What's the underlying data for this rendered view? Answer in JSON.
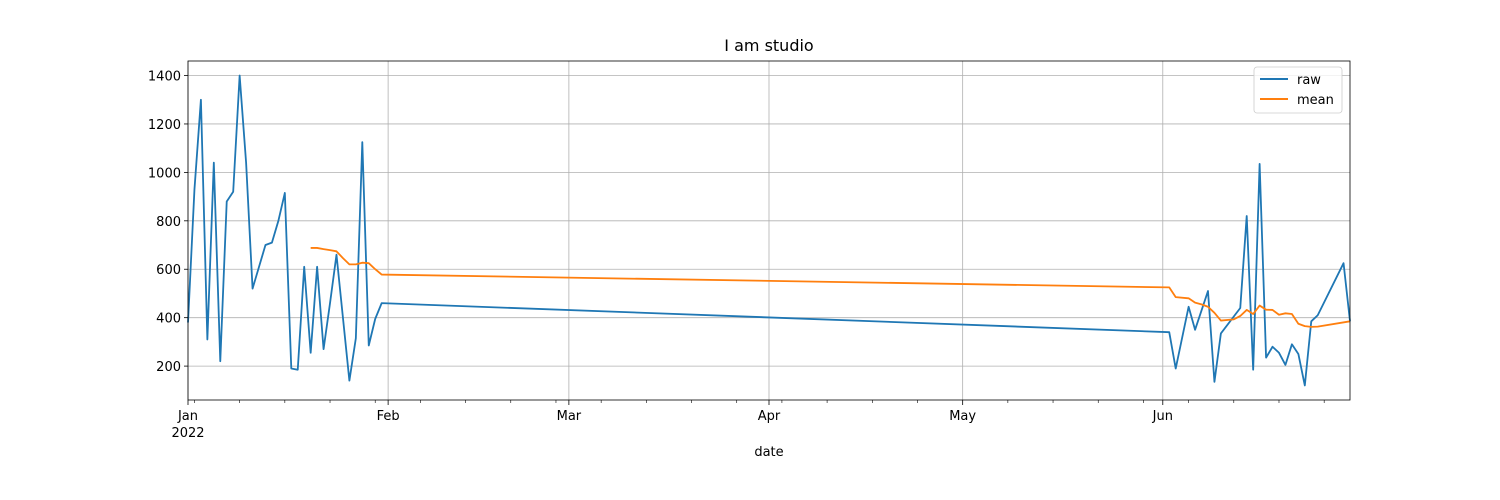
{
  "chart_data": {
    "type": "line",
    "title": "I am studio",
    "xlabel": "date",
    "ylabel": "",
    "x_axis_type": "date",
    "xlim": [
      "2022-01-01",
      "2022-06-30"
    ],
    "ylim": [
      60,
      1460
    ],
    "grid": true,
    "legend_position": "upper right",
    "x_major_ticks": [
      {
        "date": "2022-01-01",
        "label": "Jan",
        "sublabel": "2022"
      },
      {
        "date": "2022-02-01",
        "label": "Feb"
      },
      {
        "date": "2022-03-01",
        "label": "Mar"
      },
      {
        "date": "2022-04-01",
        "label": "Apr"
      },
      {
        "date": "2022-05-01",
        "label": "May"
      },
      {
        "date": "2022-06-01",
        "label": "Jun"
      }
    ],
    "y_ticks": [
      200,
      400,
      600,
      800,
      1000,
      1200,
      1400
    ],
    "series": [
      {
        "name": "raw",
        "color": "#1f77b4",
        "points": [
          [
            "2022-01-01",
            380
          ],
          [
            "2022-01-02",
            930
          ],
          [
            "2022-01-03",
            1300
          ],
          [
            "2022-01-04",
            310
          ],
          [
            "2022-01-05",
            1040
          ],
          [
            "2022-01-06",
            220
          ],
          [
            "2022-01-07",
            880
          ],
          [
            "2022-01-08",
            920
          ],
          [
            "2022-01-09",
            1400
          ],
          [
            "2022-01-10",
            1040
          ],
          [
            "2022-01-11",
            520
          ],
          [
            "2022-01-13",
            700
          ],
          [
            "2022-01-14",
            710
          ],
          [
            "2022-01-15",
            800
          ],
          [
            "2022-01-16",
            915
          ],
          [
            "2022-01-17",
            190
          ],
          [
            "2022-01-18",
            185
          ],
          [
            "2022-01-19",
            610
          ],
          [
            "2022-01-20",
            255
          ],
          [
            "2022-01-21",
            610
          ],
          [
            "2022-01-22",
            270
          ],
          [
            "2022-01-23",
            460
          ],
          [
            "2022-01-24",
            660
          ],
          [
            "2022-01-26",
            140
          ],
          [
            "2022-01-27",
            315
          ],
          [
            "2022-01-28",
            1125
          ],
          [
            "2022-01-29",
            285
          ],
          [
            "2022-01-30",
            395
          ],
          [
            "2022-01-31",
            460
          ],
          [
            "2022-06-02",
            340
          ],
          [
            "2022-06-03",
            190
          ],
          [
            "2022-06-05",
            445
          ],
          [
            "2022-06-06",
            350
          ],
          [
            "2022-06-08",
            510
          ],
          [
            "2022-06-09",
            135
          ],
          [
            "2022-06-10",
            335
          ],
          [
            "2022-06-13",
            440
          ],
          [
            "2022-06-14",
            820
          ],
          [
            "2022-06-15",
            185
          ],
          [
            "2022-06-16",
            1035
          ],
          [
            "2022-06-17",
            235
          ],
          [
            "2022-06-18",
            280
          ],
          [
            "2022-06-19",
            255
          ],
          [
            "2022-06-20",
            205
          ],
          [
            "2022-06-21",
            290
          ],
          [
            "2022-06-22",
            250
          ],
          [
            "2022-06-23",
            120
          ],
          [
            "2022-06-24",
            385
          ],
          [
            "2022-06-25",
            410
          ],
          [
            "2022-06-29",
            625
          ],
          [
            "2022-06-30",
            385
          ]
        ]
      },
      {
        "name": "mean",
        "color": "#ff7f0e",
        "points": [
          [
            "2022-01-20",
            688
          ],
          [
            "2022-01-21",
            688
          ],
          [
            "2022-01-22",
            683
          ],
          [
            "2022-01-23",
            679
          ],
          [
            "2022-01-24",
            674
          ],
          [
            "2022-01-25",
            646
          ],
          [
            "2022-01-26",
            620
          ],
          [
            "2022-01-27",
            620
          ],
          [
            "2022-01-28",
            627
          ],
          [
            "2022-01-29",
            625
          ],
          [
            "2022-01-30",
            600
          ],
          [
            "2022-01-31",
            578
          ],
          [
            "2022-06-02",
            525
          ],
          [
            "2022-06-03",
            485
          ],
          [
            "2022-06-05",
            480
          ],
          [
            "2022-06-06",
            462
          ],
          [
            "2022-06-07",
            455
          ],
          [
            "2022-06-08",
            445
          ],
          [
            "2022-06-09",
            420
          ],
          [
            "2022-06-10",
            388
          ],
          [
            "2022-06-12",
            393
          ],
          [
            "2022-06-13",
            407
          ],
          [
            "2022-06-14",
            432
          ],
          [
            "2022-06-15",
            415
          ],
          [
            "2022-06-16",
            450
          ],
          [
            "2022-06-17",
            433
          ],
          [
            "2022-06-18",
            432
          ],
          [
            "2022-06-19",
            412
          ],
          [
            "2022-06-20",
            418
          ],
          [
            "2022-06-21",
            415
          ],
          [
            "2022-06-22",
            375
          ],
          [
            "2022-06-23",
            365
          ],
          [
            "2022-06-24",
            362
          ],
          [
            "2022-06-25",
            363
          ],
          [
            "2022-06-30",
            385
          ]
        ]
      }
    ]
  }
}
